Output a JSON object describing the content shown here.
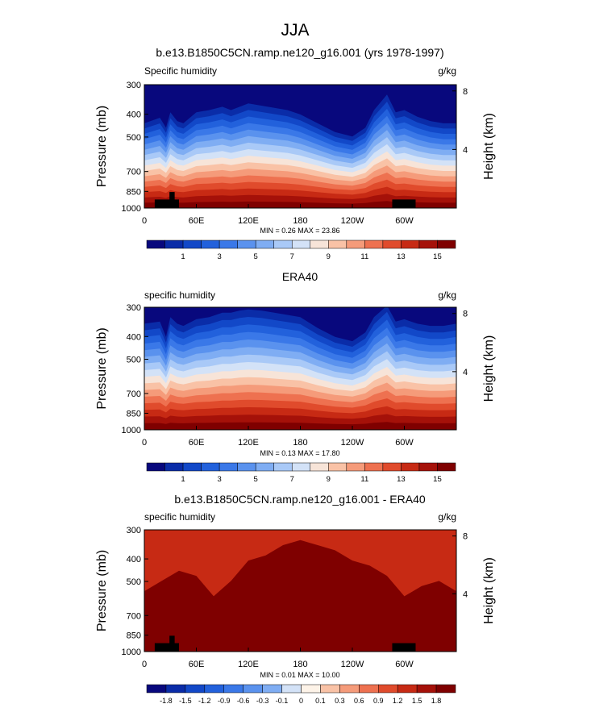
{
  "figure": {
    "title": "JJA",
    "panels": [
      {
        "title": "b.e13.B1850C5CN.ramp.ne120_g16.001 (yrs 1978-1997)",
        "left_label": "Specific humidity",
        "units": "g/kg",
        "stats": "MIN =   0.26  MAX =  23.86",
        "has_land_mask": true
      },
      {
        "title": "ERA40",
        "left_label": "specific humidity",
        "units": "g/kg",
        "stats": "MIN =   0.13  MAX =  17.80",
        "has_land_mask": false
      },
      {
        "title": "b.e13.B1850C5CN.ramp.ne120_g16.001 - ERA40",
        "left_label": "specific humidity",
        "units": "g/kg",
        "stats": "MIN =   0.01  MAX =  10.00",
        "has_land_mask": true
      }
    ]
  },
  "chart_data": [
    {
      "type": "heatmap",
      "title": "b.e13.B1850C5CN.ramp.ne120_g16.001 (yrs 1978-1997)",
      "variable": "Specific humidity",
      "units": "g/kg",
      "xlabel": "",
      "ylabel": "Pressure (mb)",
      "y2label": "Height (km)",
      "x_ticks": [
        "0",
        "60E",
        "120E",
        "180",
        "120W",
        "60W"
      ],
      "x_tick_values": [
        0,
        60,
        120,
        180,
        240,
        300
      ],
      "xlim": [
        0,
        360
      ],
      "y_ticks": [
        300,
        400,
        500,
        700,
        850,
        1000
      ],
      "ylim": [
        1000,
        300
      ],
      "y_scale": "log",
      "y2_ticks": [
        "8",
        "4"
      ],
      "y2_tick_values": [
        8,
        4
      ],
      "min": 0.26,
      "max": 23.86,
      "levels": [
        0.5,
        1,
        2,
        3,
        4,
        5,
        6,
        7,
        8,
        9,
        10,
        11,
        12,
        13,
        14,
        15
      ],
      "colorbar_labels": [
        "1",
        "3",
        "5",
        "7",
        "9",
        "11",
        "13",
        "15"
      ],
      "colormap": [
        "#08087d",
        "#0a2ca8",
        "#1248c8",
        "#2261dc",
        "#3a78e8",
        "#5a92ee",
        "#7fadf3",
        "#a9c9f7",
        "#d3e2f7",
        "#f7e4d8",
        "#f9c2a6",
        "#f59b7a",
        "#ee7150",
        "#e04b2c",
        "#c72a14",
        "#a51109",
        "#7f0000"
      ]
    },
    {
      "type": "heatmap",
      "title": "ERA40",
      "variable": "specific humidity",
      "units": "g/kg",
      "xlabel": "",
      "ylabel": "Pressure (mb)",
      "y2label": "Height (km)",
      "x_ticks": [
        "0",
        "60E",
        "120E",
        "180",
        "120W",
        "60W"
      ],
      "x_tick_values": [
        0,
        60,
        120,
        180,
        240,
        300
      ],
      "xlim": [
        0,
        360
      ],
      "y_ticks": [
        300,
        400,
        500,
        700,
        850,
        1000
      ],
      "ylim": [
        1000,
        300
      ],
      "y_scale": "log",
      "y2_ticks": [
        "8",
        "4"
      ],
      "y2_tick_values": [
        8,
        4
      ],
      "min": 0.13,
      "max": 17.8,
      "levels": [
        0.5,
        1,
        2,
        3,
        4,
        5,
        6,
        7,
        8,
        9,
        10,
        11,
        12,
        13,
        14,
        15
      ],
      "colorbar_labels": [
        "1",
        "3",
        "5",
        "7",
        "9",
        "11",
        "13",
        "15"
      ],
      "colormap": [
        "#08087d",
        "#0a2ca8",
        "#1248c8",
        "#2261dc",
        "#3a78e8",
        "#5a92ee",
        "#7fadf3",
        "#a9c9f7",
        "#d3e2f7",
        "#f7e4d8",
        "#f9c2a6",
        "#f59b7a",
        "#ee7150",
        "#e04b2c",
        "#c72a14",
        "#a51109",
        "#7f0000"
      ]
    },
    {
      "type": "heatmap",
      "title": "b.e13.B1850C5CN.ramp.ne120_g16.001 - ERA40",
      "variable": "specific humidity",
      "units": "g/kg",
      "xlabel": "",
      "ylabel": "Pressure (mb)",
      "y2label": "Height (km)",
      "x_ticks": [
        "0",
        "60E",
        "120E",
        "180",
        "120W",
        "60W"
      ],
      "x_tick_values": [
        0,
        60,
        120,
        180,
        240,
        300
      ],
      "xlim": [
        0,
        360
      ],
      "y_ticks": [
        300,
        400,
        500,
        700,
        850,
        1000
      ],
      "ylim": [
        1000,
        300
      ],
      "y_scale": "log",
      "y2_ticks": [
        "8",
        "4"
      ],
      "y2_tick_values": [
        8,
        4
      ],
      "min": 0.01,
      "max": 10.0,
      "levels": [
        -1.8,
        -1.5,
        -1.2,
        -0.9,
        -0.6,
        -0.3,
        -0.1,
        0,
        0.1,
        0.3,
        0.6,
        0.9,
        1.2,
        1.5,
        1.8
      ],
      "colorbar_labels": [
        "-1.8",
        "-1.5",
        "-1.2",
        "-0.9",
        "-0.6",
        "-0.3",
        "-0.1",
        "0",
        "0.1",
        "0.3",
        "0.6",
        "0.9",
        "1.2",
        "1.5",
        "1.8"
      ],
      "colormap": [
        "#08087d",
        "#0a2ca8",
        "#1248c8",
        "#2261dc",
        "#3a78e8",
        "#5a92ee",
        "#7fadf3",
        "#d3e2f7",
        "#fdf3e8",
        "#f9c2a6",
        "#f59b7a",
        "#ee7150",
        "#e04b2c",
        "#c72a14",
        "#a51109",
        "#7f0000"
      ]
    }
  ]
}
